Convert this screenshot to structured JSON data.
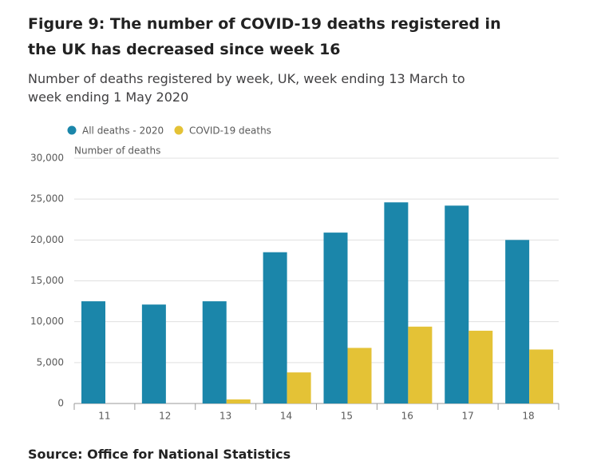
{
  "chart_data": {
    "type": "bar",
    "title": "Figure 9: The number of COVID-19 deaths registered in the UK has decreased since week 16",
    "subtitle": "Number of deaths registered by week, UK, week ending 13 March to week ending 1 May 2020",
    "y_label": "Number of deaths",
    "source": "Source: Office for National Statistics",
    "categories": [
      "11",
      "12",
      "13",
      "14",
      "15",
      "16",
      "17",
      "18"
    ],
    "series": [
      {
        "name": "All deaths - 2020",
        "color": "#1b86aa",
        "values": [
          12500,
          12100,
          12500,
          18500,
          20900,
          24600,
          24200,
          20000
        ]
      },
      {
        "name": "COVID-19 deaths",
        "color": "#e4c236",
        "values": [
          0,
          0,
          500,
          3800,
          6800,
          9400,
          8900,
          6600
        ]
      }
    ],
    "ylim": [
      0,
      30000
    ],
    "yticks": [
      0,
      {
        "value": 5000,
        "label": "5,000"
      },
      {
        "value": 10000,
        "label": "10,000"
      },
      {
        "value": 15000,
        "label": "15,000"
      },
      {
        "value": 20000,
        "label": "20,000"
      },
      {
        "value": 25000,
        "label": "25,000"
      },
      {
        "value": 30000,
        "label": "30,000"
      }
    ],
    "grid": true
  }
}
